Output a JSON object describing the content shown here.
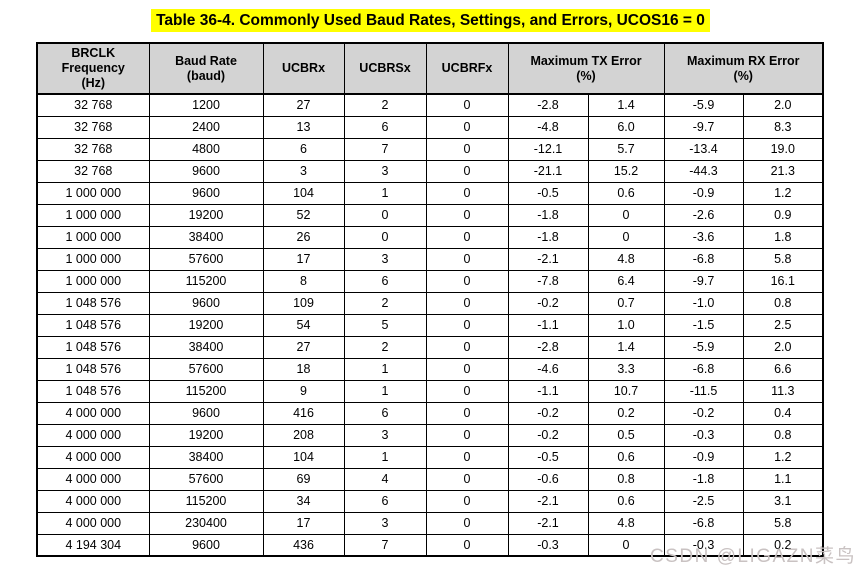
{
  "page": {
    "title": "Table 36-4. Commonly Used Baud Rates, Settings, and Errors, UCOS16 = 0",
    "watermark": "CSDN @LIGAZN菜鸟",
    "colors": {
      "title_highlight": "#ffff00",
      "header_bg": "#d3d3d3",
      "border_color": "#000000",
      "watermark_color": "#c9c2c2"
    }
  },
  "table": {
    "headers": {
      "brclk": "BRCLK\nFrequency\n(Hz)",
      "baud_rate": "Baud Rate\n(baud)",
      "ucbrx": "UCBRx",
      "ucbrsx": "UCBRSx",
      "ucbrfx": "UCBRFx",
      "tx_error": "Maximum TX Error\n(%)",
      "rx_error": "Maximum RX Error\n(%)"
    },
    "column_keys": [
      "brclk-frequency",
      "baud-rate",
      "ucbrx",
      "ucbrsx",
      "ucbrfx",
      "tx-error-neg",
      "tx-error-pos",
      "rx-error-neg",
      "rx-error-pos"
    ],
    "rows": [
      [
        "32 768",
        "1200",
        "27",
        "2",
        "0",
        "-2.8",
        "1.4",
        "-5.9",
        "2.0"
      ],
      [
        "32 768",
        "2400",
        "13",
        "6",
        "0",
        "-4.8",
        "6.0",
        "-9.7",
        "8.3"
      ],
      [
        "32 768",
        "4800",
        "6",
        "7",
        "0",
        "-12.1",
        "5.7",
        "-13.4",
        "19.0"
      ],
      [
        "32 768",
        "9600",
        "3",
        "3",
        "0",
        "-21.1",
        "15.2",
        "-44.3",
        "21.3"
      ],
      [
        "1 000 000",
        "9600",
        "104",
        "1",
        "0",
        "-0.5",
        "0.6",
        "-0.9",
        "1.2"
      ],
      [
        "1 000 000",
        "19200",
        "52",
        "0",
        "0",
        "-1.8",
        "0",
        "-2.6",
        "0.9"
      ],
      [
        "1 000 000",
        "38400",
        "26",
        "0",
        "0",
        "-1.8",
        "0",
        "-3.6",
        "1.8"
      ],
      [
        "1 000 000",
        "57600",
        "17",
        "3",
        "0",
        "-2.1",
        "4.8",
        "-6.8",
        "5.8"
      ],
      [
        "1 000 000",
        "115200",
        "8",
        "6",
        "0",
        "-7.8",
        "6.4",
        "-9.7",
        "16.1"
      ],
      [
        "1 048 576",
        "9600",
        "109",
        "2",
        "0",
        "-0.2",
        "0.7",
        "-1.0",
        "0.8"
      ],
      [
        "1 048 576",
        "19200",
        "54",
        "5",
        "0",
        "-1.1",
        "1.0",
        "-1.5",
        "2.5"
      ],
      [
        "1 048 576",
        "38400",
        "27",
        "2",
        "0",
        "-2.8",
        "1.4",
        "-5.9",
        "2.0"
      ],
      [
        "1 048 576",
        "57600",
        "18",
        "1",
        "0",
        "-4.6",
        "3.3",
        "-6.8",
        "6.6"
      ],
      [
        "1 048 576",
        "115200",
        "9",
        "1",
        "0",
        "-1.1",
        "10.7",
        "-11.5",
        "11.3"
      ],
      [
        "4 000 000",
        "9600",
        "416",
        "6",
        "0",
        "-0.2",
        "0.2",
        "-0.2",
        "0.4"
      ],
      [
        "4 000 000",
        "19200",
        "208",
        "3",
        "0",
        "-0.2",
        "0.5",
        "-0.3",
        "0.8"
      ],
      [
        "4 000 000",
        "38400",
        "104",
        "1",
        "0",
        "-0.5",
        "0.6",
        "-0.9",
        "1.2"
      ],
      [
        "4 000 000",
        "57600",
        "69",
        "4",
        "0",
        "-0.6",
        "0.8",
        "-1.8",
        "1.1"
      ],
      [
        "4 000 000",
        "115200",
        "34",
        "6",
        "0",
        "-2.1",
        "0.6",
        "-2.5",
        "3.1"
      ],
      [
        "4 000 000",
        "230400",
        "17",
        "3",
        "0",
        "-2.1",
        "4.8",
        "-6.8",
        "5.8"
      ],
      [
        "4 194 304",
        "9600",
        "436",
        "7",
        "0",
        "-0.3",
        "0",
        "-0.3",
        "0.2"
      ]
    ]
  }
}
